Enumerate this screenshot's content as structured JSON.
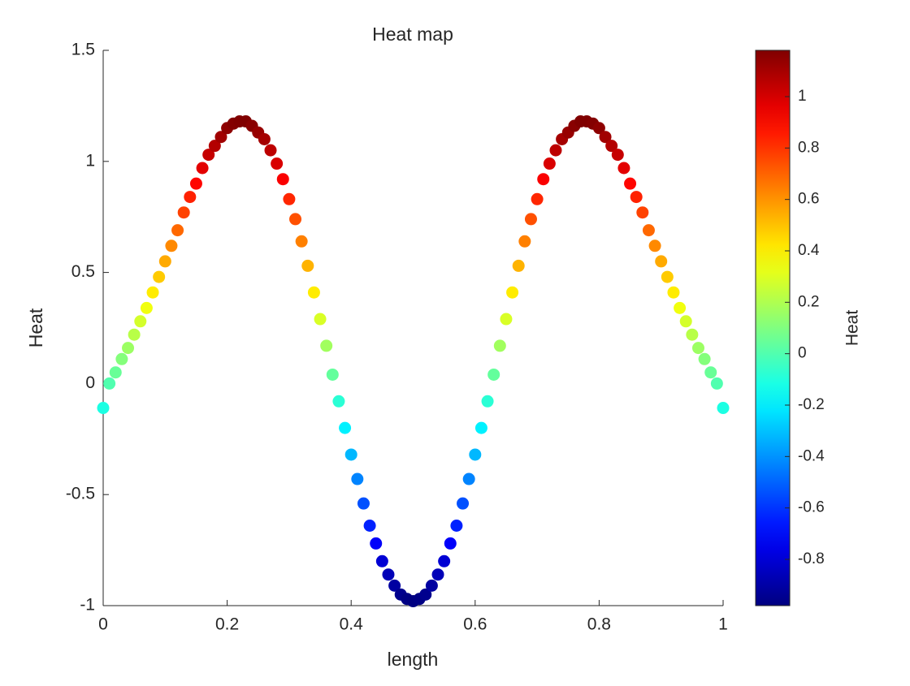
{
  "chart_data": {
    "type": "scatter",
    "title": "Heat map",
    "x_label": "length",
    "y_label": "Heat",
    "colorbar_label": "Heat",
    "colormap": "jet",
    "clim": [
      -0.98,
      1.18
    ],
    "cticks": [
      -0.8,
      -0.6,
      -0.4,
      -0.2,
      0,
      0.2,
      0.4,
      0.6,
      0.8,
      1
    ],
    "xlim": [
      0,
      1
    ],
    "xticks": [
      0,
      0.2,
      0.4,
      0.6,
      0.8,
      1
    ],
    "ylim": [
      -1,
      1.5
    ],
    "yticks": [
      -1,
      -0.5,
      0,
      0.5,
      1,
      1.5
    ],
    "x": [
      0,
      0.01,
      0.02,
      0.03,
      0.04,
      0.05,
      0.06,
      0.07,
      0.08,
      0.09,
      0.1,
      0.11,
      0.12,
      0.13,
      0.14,
      0.15,
      0.16,
      0.17,
      0.18,
      0.19,
      0.2,
      0.21,
      0.22,
      0.23,
      0.24,
      0.25,
      0.26,
      0.27,
      0.28,
      0.29,
      0.3,
      0.31,
      0.32,
      0.33,
      0.34,
      0.35,
      0.36,
      0.37,
      0.38,
      0.39,
      0.4,
      0.41,
      0.42,
      0.43,
      0.44,
      0.45,
      0.46,
      0.47,
      0.48,
      0.49,
      0.5,
      0.51,
      0.52,
      0.53,
      0.54,
      0.55,
      0.56,
      0.57,
      0.58,
      0.59,
      0.6,
      0.61,
      0.62,
      0.63,
      0.64,
      0.65,
      0.66,
      0.67,
      0.68,
      0.69,
      0.7,
      0.71,
      0.72,
      0.73,
      0.74,
      0.75,
      0.76,
      0.77,
      0.78,
      0.79,
      0.8,
      0.81,
      0.82,
      0.83,
      0.84,
      0.85,
      0.86,
      0.87,
      0.88,
      0.89,
      0.9,
      0.91,
      0.92,
      0.93,
      0.94,
      0.95,
      0.96,
      0.97,
      0.98,
      0.99,
      1
    ],
    "values": [
      -0.11,
      0.0,
      0.05,
      0.11,
      0.16,
      0.22,
      0.28,
      0.34,
      0.41,
      0.48,
      0.55,
      0.62,
      0.69,
      0.77,
      0.84,
      0.9,
      0.97,
      1.03,
      1.07,
      1.11,
      1.15,
      1.17,
      1.18,
      1.18,
      1.16,
      1.13,
      1.1,
      1.05,
      0.99,
      0.92,
      0.83,
      0.74,
      0.64,
      0.53,
      0.41,
      0.29,
      0.17,
      0.04,
      -0.08,
      -0.2,
      -0.32,
      -0.43,
      -0.54,
      -0.64,
      -0.72,
      -0.8,
      -0.86,
      -0.91,
      -0.95,
      -0.97,
      -0.98,
      -0.97,
      -0.95,
      -0.91,
      -0.86,
      -0.8,
      -0.72,
      -0.64,
      -0.54,
      -0.43,
      -0.32,
      -0.2,
      -0.08,
      0.04,
      0.17,
      0.29,
      0.41,
      0.53,
      0.64,
      0.74,
      0.83,
      0.92,
      0.99,
      1.05,
      1.1,
      1.13,
      1.16,
      1.18,
      1.18,
      1.17,
      1.15,
      1.11,
      1.07,
      1.03,
      0.97,
      0.9,
      0.84,
      0.77,
      0.69,
      0.62,
      0.55,
      0.48,
      0.41,
      0.34,
      0.28,
      0.22,
      0.16,
      0.11,
      0.05,
      0.0,
      -0.11
    ]
  }
}
